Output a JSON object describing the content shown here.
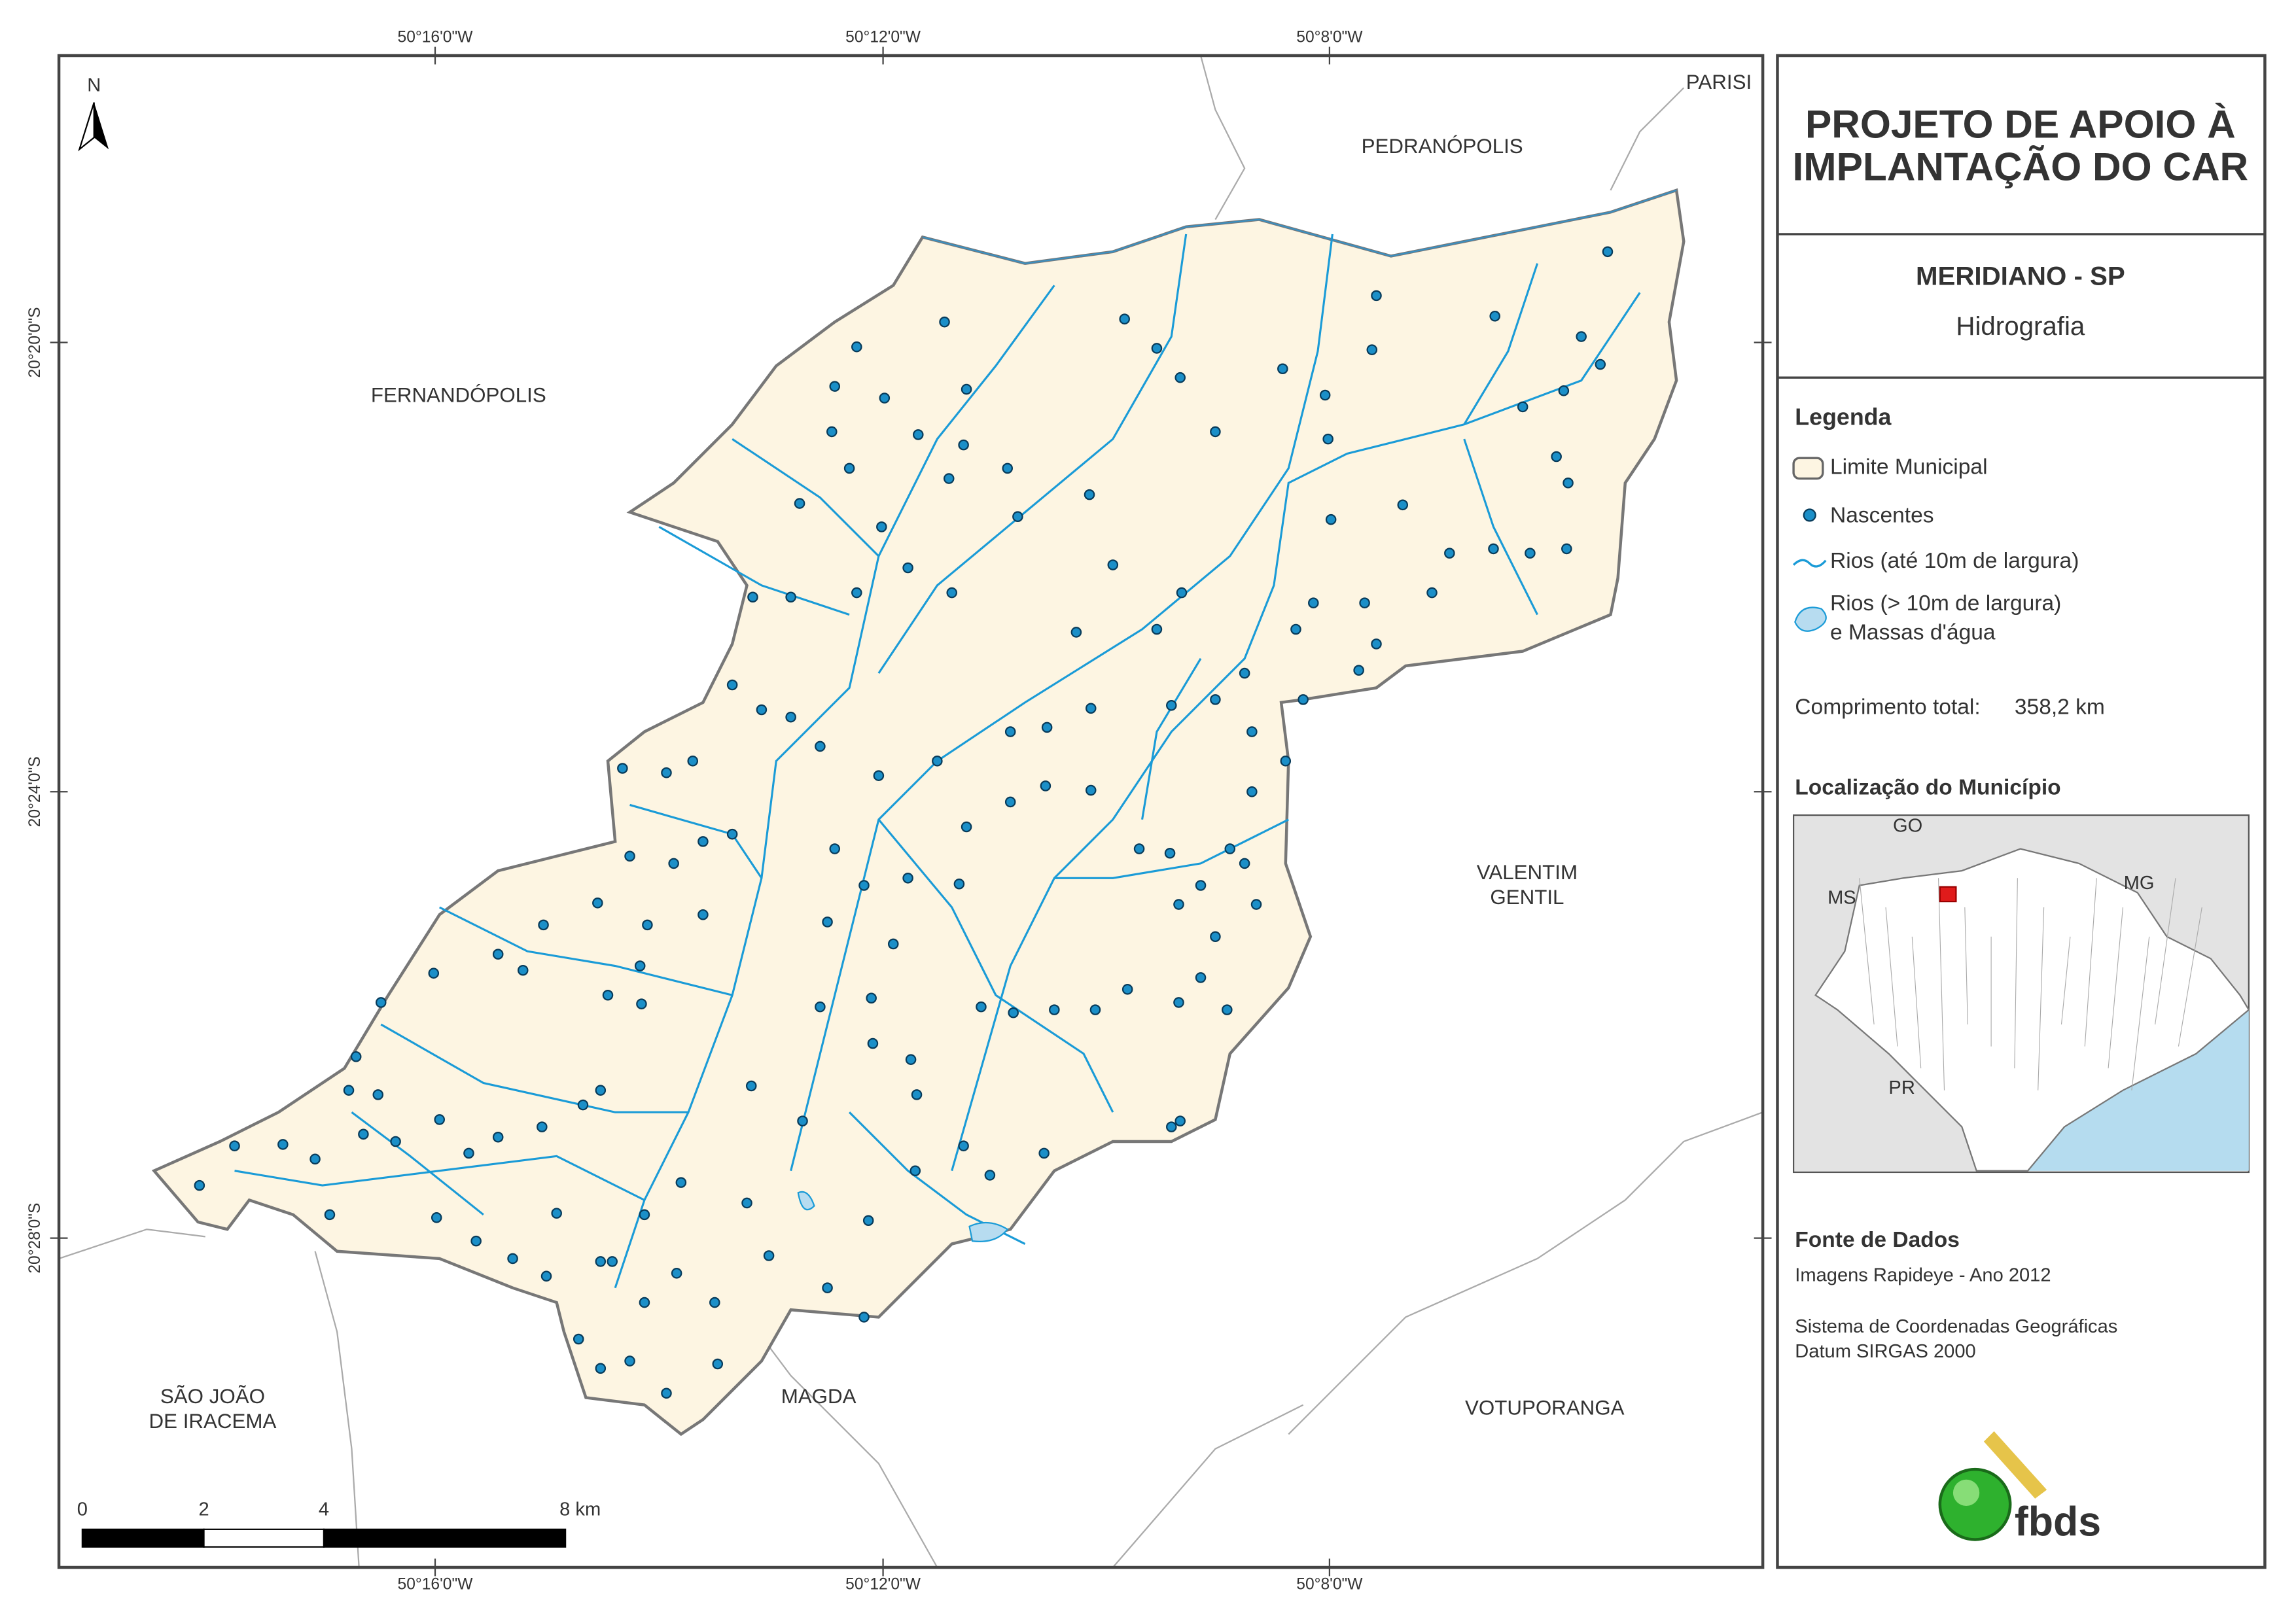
{
  "map": {
    "north": "N",
    "coord_top": [
      "50°16'0\"W",
      "50°12'0\"W",
      "50°8'0\"W"
    ],
    "coord_bottom": [
      "50°16'0\"W",
      "50°12'0\"W",
      "50°8'0\"W"
    ],
    "coord_left": [
      "20°20'0\"S",
      "20°24'0\"S",
      "20°28'0\"S"
    ],
    "place_labels": [
      [
        "PARISI"
      ],
      [
        "PEDRANÓPOLIS"
      ],
      [
        "FERNANDÓPOLIS"
      ],
      [
        "VALENTIM",
        "GENTIL"
      ],
      [
        "SÃO JOÃO",
        "DE IRACEMA"
      ],
      [
        "MAGDA"
      ],
      [
        "VOTUPORANGA"
      ]
    ],
    "scale_labels": [
      "0",
      "2",
      "4",
      "8 km"
    ]
  },
  "panel": {
    "title": [
      "PROJETO DE APOIO À",
      "IMPLANTAÇÃO DO CAR"
    ],
    "municipality": "MERIDIANO - SP",
    "theme": "Hidrografia"
  },
  "legend": {
    "title": "Legenda",
    "items": [
      [
        "Limite Municipal"
      ],
      [
        "Nascentes"
      ],
      [
        "Rios (até 10m de largura)"
      ],
      [
        "Rios (> 10m de largura)",
        "e Massas d'água"
      ]
    ]
  },
  "total_length": {
    "label": "Comprimento total:",
    "value": "358,2 km"
  },
  "location": {
    "title": "Localização do Município",
    "labels": [
      "GO",
      "MS",
      "MG",
      "PR"
    ]
  },
  "sources": {
    "title": "Fonte de Dados",
    "lines": [
      "Imagens Rapideye - Ano 2012",
      "Sistema de Coordenadas Geográficas",
      "Datum SIRGAS 2000"
    ]
  },
  "logo": "fbds"
}
